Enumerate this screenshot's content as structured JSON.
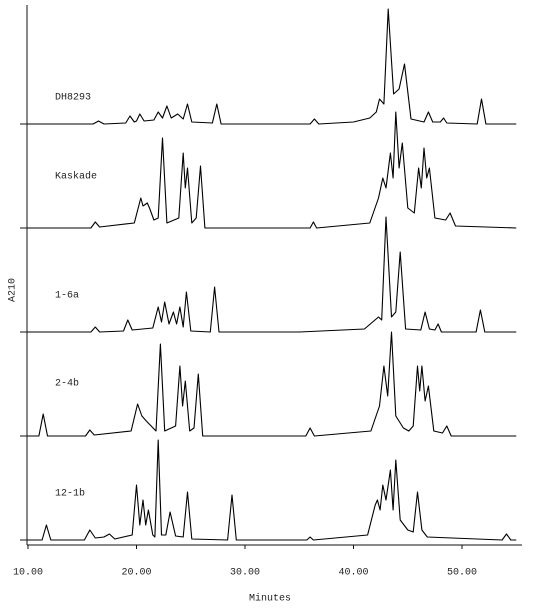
{
  "chart_data": {
    "type": "line",
    "xlabel": "Minutes",
    "ylabel": "A210",
    "xlim": [
      10,
      55
    ],
    "xticks": [
      {
        "value": 10,
        "label": "10.00"
      },
      {
        "value": 20,
        "label": "20.00"
      },
      {
        "value": 30,
        "label": "30.00"
      },
      {
        "value": 40,
        "label": "40.00"
      },
      {
        "value": 50,
        "label": "50.00"
      }
    ],
    "ylim": [
      0,
      100
    ],
    "grid": false,
    "log_x": false,
    "series": [
      {
        "name": "DH8293",
        "color": "#000000",
        "x": [
          10,
          16,
          16.5,
          17,
          19,
          19.4,
          19.8,
          20,
          20.3,
          20.7,
          21.6,
          22,
          22.4,
          22.8,
          23.2,
          23.8,
          24.3,
          24.7,
          25.1,
          27.0,
          27.4,
          27.8,
          36,
          36.4,
          36.8,
          40,
          41.5,
          42.1,
          42.4,
          42.8,
          43.2,
          43.7,
          44.2,
          44.7,
          45.3,
          46.5,
          46.9,
          47.3,
          48,
          48.3,
          48.6,
          51.4,
          51.8,
          52.2,
          55
        ],
        "values": [
          0,
          0,
          3,
          0,
          1,
          8,
          2,
          3,
          10,
          3,
          4,
          12,
          6,
          18,
          6,
          10,
          5,
          20,
          2,
          1,
          20,
          0,
          0,
          5,
          0,
          2,
          6,
          12,
          25,
          20,
          115,
          30,
          35,
          60,
          5,
          2,
          12,
          2,
          2,
          6,
          1,
          0,
          25,
          0,
          0
        ]
      },
      {
        "name": "Kaskade",
        "color": "#000000",
        "x": [
          10,
          15.8,
          16.2,
          16.6,
          19.8,
          20.4,
          20.6,
          21,
          21.2,
          21.6,
          22,
          22.4,
          22.8,
          23.9,
          24.3,
          24.5,
          24.7,
          25.1,
          25.5,
          25.9,
          26.3,
          36,
          36.3,
          36.6,
          41.5,
          42.3,
          42.7,
          43.0,
          43.4,
          43.65,
          43.9,
          44.2,
          44.5,
          45,
          45.6,
          46,
          46.25,
          46.5,
          46.75,
          47,
          47.5,
          48.5,
          48.9,
          49.4,
          55
        ],
        "values": [
          0,
          0,
          6,
          1,
          5,
          30,
          22,
          25,
          20,
          8,
          10,
          90,
          5,
          10,
          75,
          40,
          60,
          5,
          10,
          62,
          0,
          0,
          6,
          0,
          5,
          30,
          50,
          40,
          75,
          50,
          116,
          60,
          85,
          20,
          15,
          60,
          40,
          80,
          50,
          60,
          10,
          8,
          15,
          2,
          0
        ]
      },
      {
        "name": "1-6a",
        "color": "#000000",
        "x": [
          10,
          15.8,
          16.2,
          16.6,
          18.8,
          19.2,
          19.6,
          21.5,
          22,
          22.3,
          22.6,
          23,
          23.4,
          23.7,
          24,
          24.3,
          24.6,
          25,
          26.8,
          27.2,
          27.6,
          35,
          41,
          42.3,
          42.6,
          43,
          43.5,
          43.9,
          44.3,
          44.8,
          46.2,
          46.6,
          47,
          47.5,
          47.8,
          48.1,
          51.3,
          51.7,
          52.1,
          55
        ],
        "values": [
          0,
          0,
          5,
          0,
          1,
          12,
          2,
          4,
          25,
          10,
          30,
          8,
          20,
          8,
          25,
          5,
          40,
          1,
          0,
          45,
          0,
          0,
          3,
          15,
          12,
          115,
          15,
          20,
          80,
          3,
          2,
          20,
          3,
          2,
          8,
          0,
          0,
          22,
          0,
          0
        ]
      },
      {
        "name": "2-4b",
        "color": "#000000",
        "x": [
          10,
          11,
          11.4,
          11.8,
          15.3,
          15.7,
          16.1,
          19.5,
          20.1,
          20.5,
          20.9,
          21.8,
          22.2,
          22.6,
          23.6,
          24,
          24.25,
          24.5,
          24.9,
          25.3,
          25.7,
          26.1,
          35.6,
          36,
          36.4,
          41.6,
          42.4,
          42.8,
          43.15,
          43.5,
          43.9,
          44.6,
          45.1,
          45.5,
          45.9,
          46.1,
          46.3,
          46.6,
          46.9,
          47.4,
          48.2,
          48.6,
          49,
          55
        ],
        "values": [
          0,
          0,
          22,
          0,
          0,
          6,
          1,
          5,
          32,
          20,
          15,
          5,
          92,
          5,
          10,
          70,
          30,
          55,
          5,
          8,
          62,
          0,
          0,
          8,
          0,
          5,
          30,
          70,
          40,
          104,
          20,
          8,
          5,
          10,
          70,
          45,
          70,
          35,
          50,
          5,
          3,
          10,
          0,
          0
        ]
      },
      {
        "name": "12-1b",
        "color": "#000000",
        "x": [
          10,
          11.3,
          11.7,
          12.1,
          15.2,
          15.7,
          16.2,
          17,
          17.5,
          18,
          19.6,
          20,
          20.3,
          20.6,
          20.85,
          21.1,
          21.5,
          21.7,
          22,
          22.3,
          22.7,
          23.1,
          23.6,
          24.3,
          24.7,
          25.1,
          28.4,
          28.8,
          29.2,
          35.7,
          36,
          36.3,
          41.3,
          42,
          42.2,
          42.45,
          42.7,
          43,
          43.4,
          43.65,
          43.9,
          44.3,
          45,
          45.5,
          45.9,
          46.3,
          46.8,
          53.7,
          54.1,
          54.5,
          55
        ],
        "values": [
          0,
          0,
          15,
          0,
          0,
          10,
          2,
          3,
          6,
          1,
          5,
          55,
          15,
          40,
          15,
          30,
          5,
          3,
          100,
          5,
          5,
          28,
          4,
          3,
          48,
          1,
          0,
          45,
          0,
          0,
          3,
          0,
          5,
          35,
          40,
          30,
          55,
          40,
          70,
          30,
          80,
          20,
          10,
          8,
          48,
          10,
          3,
          0,
          6,
          0,
          0
        ]
      }
    ]
  }
}
